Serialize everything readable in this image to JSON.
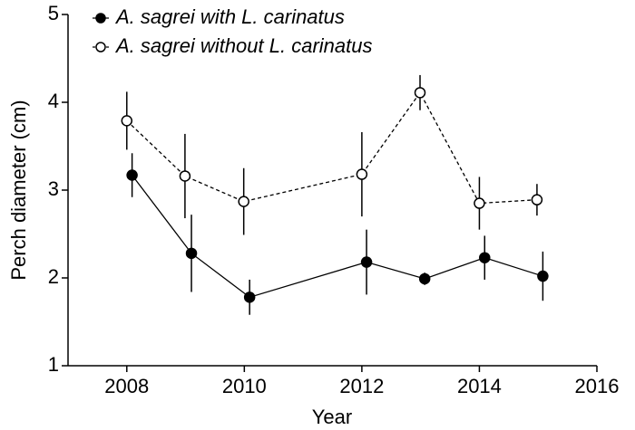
{
  "chart_data": {
    "type": "line",
    "xlabel": "Year",
    "ylabel": "Perch diameter (cm)",
    "xlim": [
      2007,
      2016
    ],
    "xticks": [
      2008,
      2010,
      2012,
      2014,
      2016
    ],
    "ylim": [
      1,
      5
    ],
    "yticks": [
      1,
      2,
      3,
      4,
      5
    ],
    "series": [
      {
        "name": "A. sagrei with L. carinatus",
        "color": "#000000",
        "marker": "filled",
        "dashed": false,
        "x": [
          2008.09,
          2009.1,
          2010.09,
          2012.08,
          2013.07,
          2014.09,
          2015.08
        ],
        "values": [
          3.17,
          2.28,
          1.78,
          2.18,
          1.99,
          2.23,
          2.02
        ],
        "errors": [
          0.25,
          0.44,
          0.2,
          0.37,
          0.07,
          0.25,
          0.28
        ]
      },
      {
        "name": "A. sagrei without L. carinatus",
        "color": "#000000",
        "marker": "open",
        "dashed": true,
        "x": [
          2008.0,
          2008.99,
          2009.99,
          2012.0,
          2012.99,
          2014.0,
          2014.98
        ],
        "values": [
          3.79,
          3.16,
          2.87,
          3.18,
          4.11,
          2.85,
          2.89
        ],
        "errors": [
          0.33,
          0.48,
          0.38,
          0.48,
          0.2,
          0.3,
          0.18
        ]
      }
    ]
  }
}
